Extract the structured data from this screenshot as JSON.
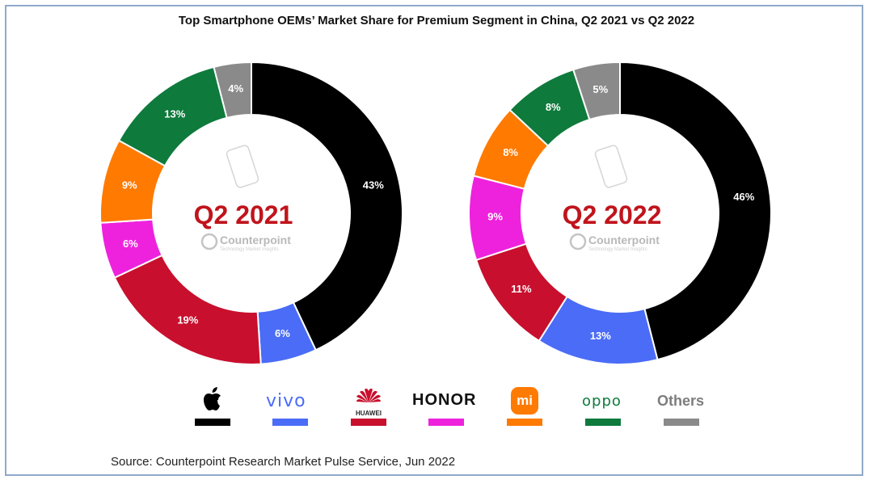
{
  "title": "Top Smartphone OEMs’ Market Share for Premium Segment in China, Q2 2021 vs Q2 2022",
  "source": "Source: Counterpoint Research Market Pulse Service, Jun 2022",
  "watermark": {
    "brand": "Counterpoint",
    "tagline": "Technology Market Insights"
  },
  "colors": {
    "Apple": "#000000",
    "vivo": "#4a6cf7",
    "HUAWEI": "#c8102e",
    "HONOR": "#ee22dd",
    "Xiaomi": "#ff7a00",
    "OPPO": "#0e7a3c",
    "Others": "#8a8a8a"
  },
  "legend": [
    {
      "key": "Apple",
      "text": "",
      "icon": "apple-logo-icon"
    },
    {
      "key": "vivo",
      "text": "vivo",
      "icon": "vivo-logo"
    },
    {
      "key": "HUAWEI",
      "text": "HUAWEI",
      "icon": "huawei-logo-icon"
    },
    {
      "key": "HONOR",
      "text": "HONOR",
      "icon": "honor-logo"
    },
    {
      "key": "Xiaomi",
      "text": "mi",
      "icon": "xiaomi-logo-icon"
    },
    {
      "key": "OPPO",
      "text": "oppo",
      "icon": "oppo-logo"
    },
    {
      "key": "Others",
      "text": "Others",
      "icon": "others-label"
    }
  ],
  "chart_data": [
    {
      "type": "pie",
      "title": "Q2 2021",
      "categories": [
        "Apple",
        "vivo",
        "HUAWEI",
        "HONOR",
        "Xiaomi",
        "OPPO",
        "Others"
      ],
      "values": [
        43,
        6,
        19,
        6,
        9,
        13,
        4
      ],
      "labels": [
        "43%",
        "6%",
        "19%",
        "6%",
        "9%",
        "13%",
        "4%"
      ]
    },
    {
      "type": "pie",
      "title": "Q2 2022",
      "categories": [
        "Apple",
        "vivo",
        "HUAWEI",
        "HONOR",
        "Xiaomi",
        "OPPO",
        "Others"
      ],
      "values": [
        46,
        13,
        11,
        9,
        8,
        8,
        5
      ],
      "labels": [
        "46%",
        "13%",
        "11%",
        "9%",
        "8%",
        "8%",
        "5%"
      ]
    }
  ]
}
